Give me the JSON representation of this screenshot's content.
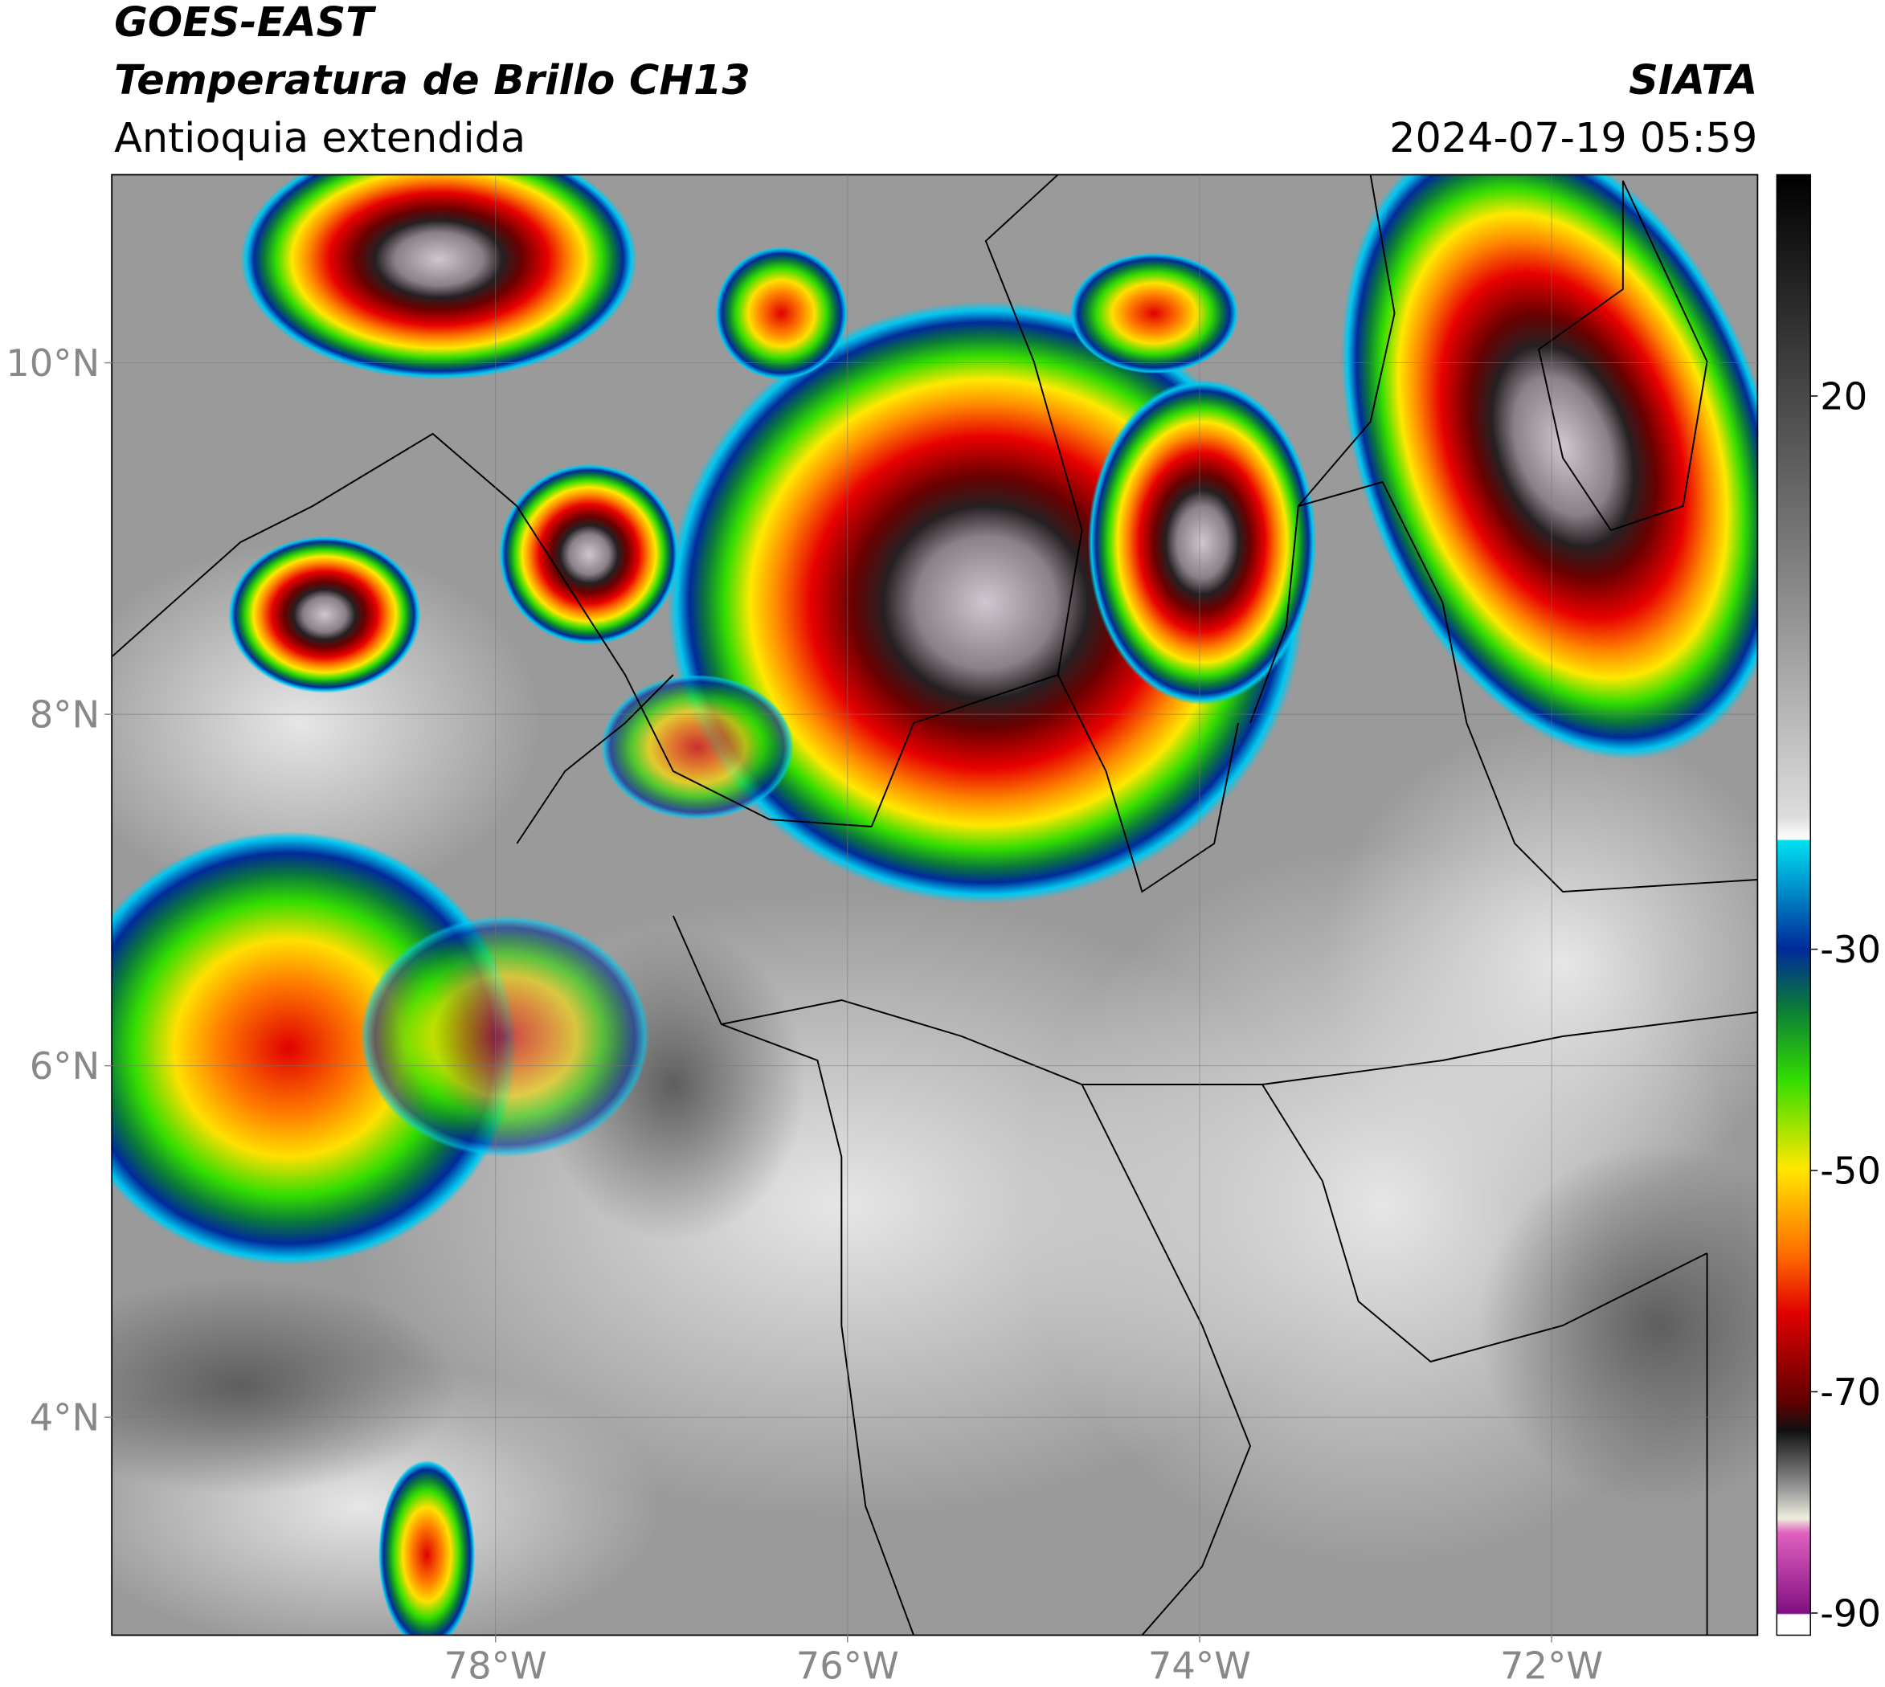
{
  "header": {
    "satellite": "GOES-EAST",
    "product": "Temperatura de Brillo CH13",
    "region": "Antioquia extendida",
    "agency": "SIATA",
    "datetime": "2024-07-19 05:59"
  },
  "chart_data": {
    "type": "map",
    "xlim": [
      -80.18,
      -70.83
    ],
    "ylim": [
      2.76,
      11.07
    ],
    "xticks": [
      {
        "value": -78,
        "label": "78°W"
      },
      {
        "value": -76,
        "label": "76°W"
      },
      {
        "value": -74,
        "label": "74°W"
      },
      {
        "value": -72,
        "label": "72°W"
      }
    ],
    "yticks": [
      {
        "value": 10,
        "label": "10°N"
      },
      {
        "value": 8,
        "label": "8°N"
      },
      {
        "value": 6,
        "label": "6°N"
      },
      {
        "value": 4,
        "label": "4°N"
      }
    ],
    "grid": true,
    "colorbar": {
      "clim": [
        -92,
        40
      ],
      "ticks": [
        20,
        -30,
        -50,
        -70,
        -90
      ]
    }
  }
}
